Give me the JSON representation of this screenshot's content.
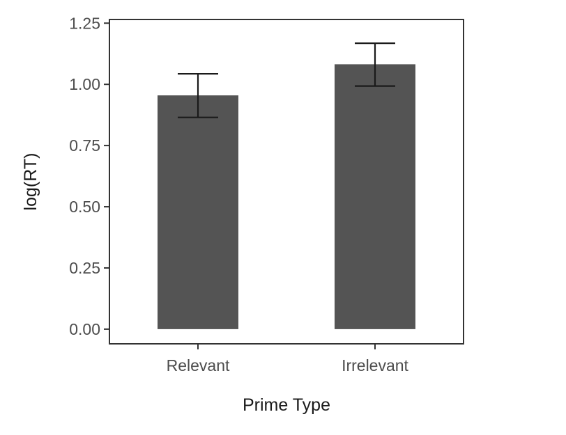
{
  "chart_data": {
    "type": "bar",
    "title": "",
    "xlabel": "Prime Type",
    "ylabel": "log(RT)",
    "categories": [
      "Relevant",
      "Irrelevant"
    ],
    "values": [
      0.955,
      1.082
    ],
    "error_low": [
      0.865,
      0.993
    ],
    "error_high": [
      1.043,
      1.168
    ],
    "ylim": [
      -0.06,
      1.265
    ],
    "yticks": [
      0.0,
      0.25,
      0.5,
      0.75,
      1.0,
      1.25
    ],
    "ytick_labels": [
      "0.00",
      "0.25",
      "0.50",
      "0.75",
      "1.00",
      "1.25"
    ],
    "grid": false,
    "legend": "none",
    "colors": {
      "bar": "#545454",
      "error_bar": "#1a1a1a",
      "panel_border": "#333333",
      "tick_label": "#4d4d4d"
    }
  }
}
